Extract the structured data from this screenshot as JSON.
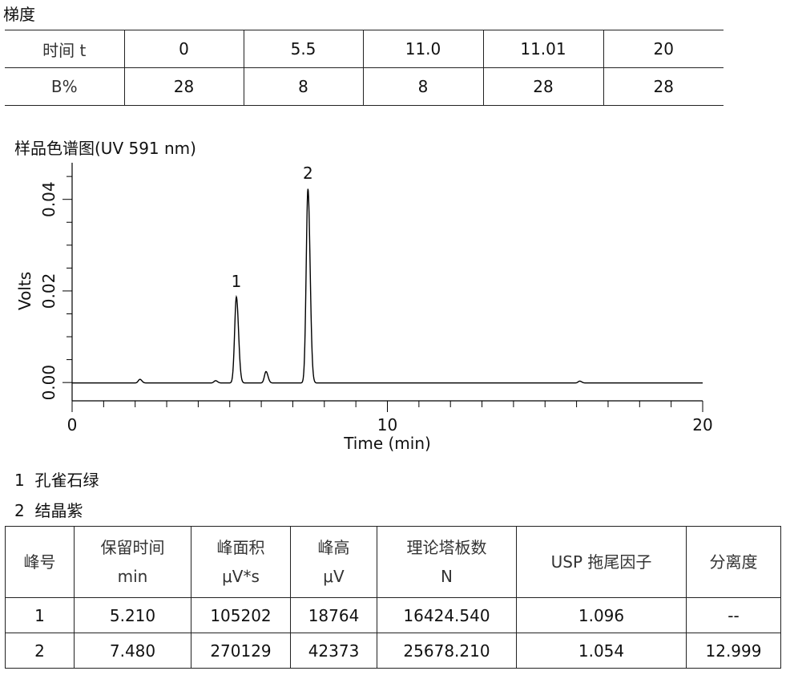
{
  "gradient": {
    "title": "梯度",
    "row_time_label": "时间 t",
    "row_b_label": "B%",
    "time": [
      "0",
      "5.5",
      "11.0",
      "11.01",
      "20"
    ],
    "b": [
      "28",
      "8",
      "8",
      "28",
      "28"
    ]
  },
  "chart_title": "样品色谱图(UV 591 nm)",
  "chart_data": {
    "type": "line",
    "xlabel": "Time (min)",
    "ylabel": "Volts",
    "xlim": [
      0,
      20
    ],
    "ylim": [
      -0.004,
      0.048
    ],
    "x_ticks": [
      "0",
      "10",
      "20"
    ],
    "y_ticks": [
      "0.00",
      "0.02",
      "0.04"
    ],
    "peaks": [
      {
        "label": "1",
        "rt": 5.21,
        "height": 0.0188
      },
      {
        "label": "2",
        "rt": 7.48,
        "height": 0.0424
      }
    ],
    "minor_peaks": [
      {
        "rt": 2.15,
        "height": 0.0008
      },
      {
        "rt": 4.55,
        "height": 0.0005
      },
      {
        "rt": 6.15,
        "height": 0.0025
      },
      {
        "rt": 16.1,
        "height": 0.0004
      }
    ]
  },
  "legend": [
    {
      "num": "1",
      "name": "孔雀石绿"
    },
    {
      "num": "2",
      "name": "结晶紫"
    }
  ],
  "results": {
    "headers": [
      {
        "line1": "峰号",
        "line2": ""
      },
      {
        "line1": "保留时间",
        "line2": "min"
      },
      {
        "line1": "峰面积",
        "line2": "μV*s"
      },
      {
        "line1": "峰高",
        "line2": "μV"
      },
      {
        "line1": "理论塔板数",
        "line2": "N"
      },
      {
        "line1": "USP 拖尾因子",
        "line2": ""
      },
      {
        "line1": "分离度",
        "line2": ""
      }
    ],
    "rows": [
      [
        "1",
        "5.210",
        "105202",
        "18764",
        "16424.540",
        "1.096",
        "--"
      ],
      [
        "2",
        "7.480",
        "270129",
        "42373",
        "25678.210",
        "1.054",
        "12.999"
      ]
    ]
  }
}
